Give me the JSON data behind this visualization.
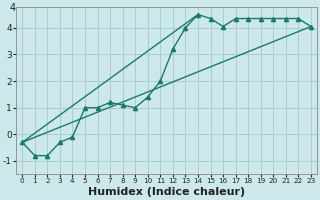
{
  "xlabel": "Humidex (Indice chaleur)",
  "background_color": "#cce8ea",
  "grid_color": "#aacccc",
  "line_color": "#1a7a6a",
  "xlim": [
    -0.5,
    23.5
  ],
  "ylim": [
    -1.5,
    4.8
  ],
  "x_ticks": [
    0,
    1,
    2,
    3,
    4,
    5,
    6,
    7,
    8,
    9,
    10,
    11,
    12,
    13,
    14,
    15,
    16,
    17,
    18,
    19,
    20,
    21,
    22,
    23
  ],
  "y_ticks": [
    -1,
    0,
    1,
    2,
    3,
    4
  ],
  "curve_x": [
    0,
    1,
    2,
    3,
    4,
    5,
    6,
    7,
    8,
    9,
    10,
    11,
    12,
    13,
    14,
    15,
    16,
    17,
    18,
    19,
    20,
    21,
    22,
    23
  ],
  "curve_y": [
    -0.3,
    -0.8,
    -0.8,
    -0.3,
    -0.1,
    1.0,
    1.0,
    1.2,
    1.1,
    1.0,
    1.4,
    2.0,
    3.2,
    4.0,
    4.5,
    4.35,
    4.05,
    4.35,
    4.35,
    4.35,
    4.35,
    4.35,
    4.35,
    4.05
  ],
  "line1_x": [
    0,
    23
  ],
  "line1_y": [
    -0.3,
    4.05
  ],
  "line2_x": [
    0,
    14
  ],
  "line2_y": [
    -0.3,
    4.5
  ],
  "xlabel_fontsize": 8,
  "marker_size": 3,
  "line_width": 1.0
}
